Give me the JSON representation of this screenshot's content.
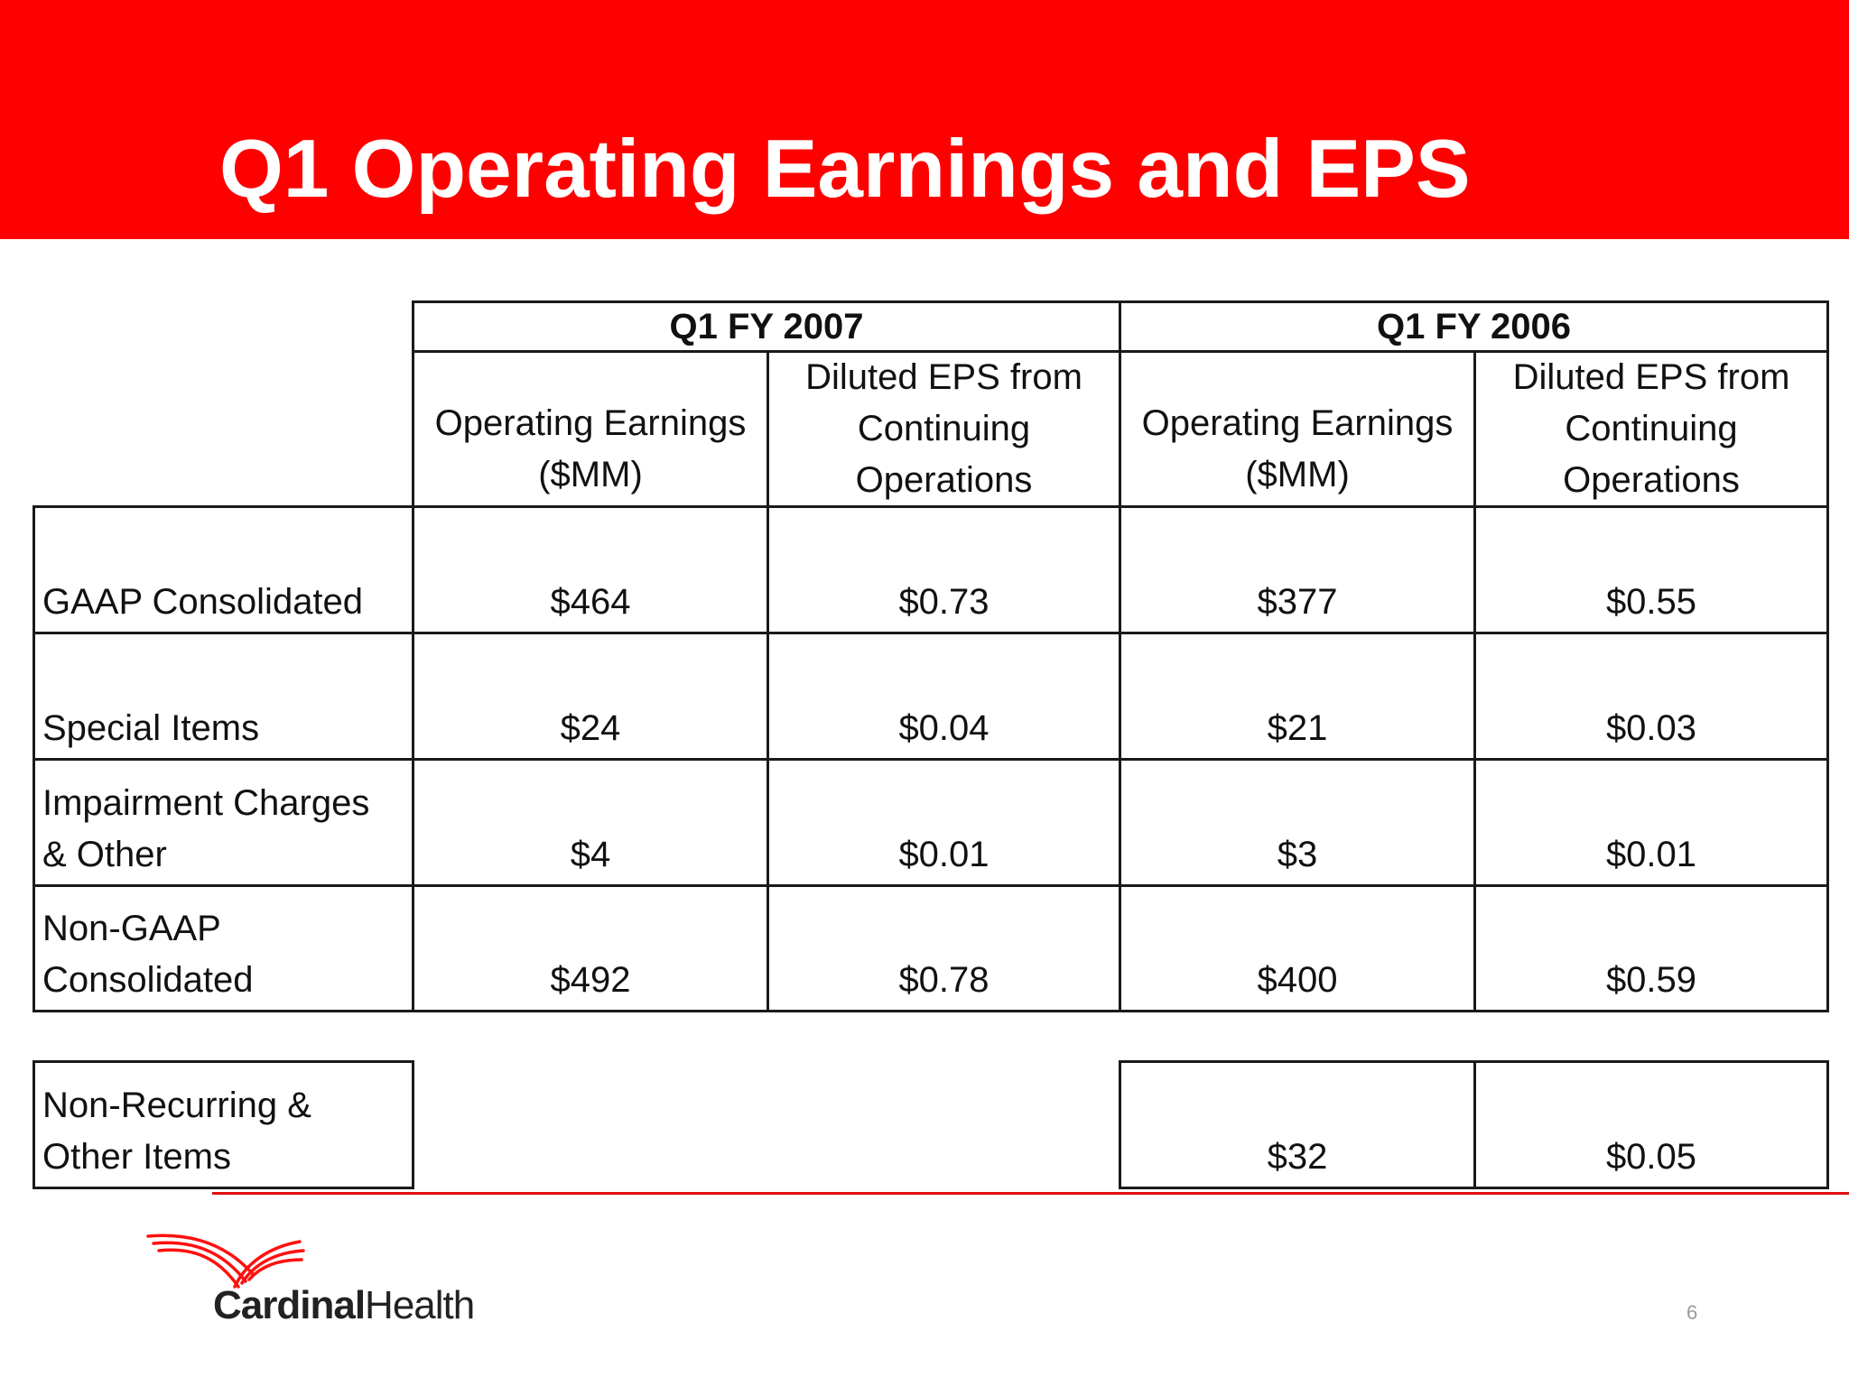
{
  "title": "Q1 Operating Earnings and EPS",
  "table": {
    "groups": [
      "Q1 FY 2007",
      "Q1 FY 2006"
    ],
    "col_op_earnings": [
      "Operating Earnings",
      "($MM)"
    ],
    "col_eps": [
      "Diluted EPS from",
      "Continuing",
      "Operations"
    ],
    "rows": [
      {
        "label": [
          "GAAP Consolidated"
        ],
        "values": [
          "$464",
          "$0.73",
          "$377",
          "$0.55"
        ]
      },
      {
        "label": [
          "Special Items"
        ],
        "values": [
          "$24",
          "$0.04",
          "$21",
          "$0.03"
        ]
      },
      {
        "label": [
          "Impairment Charges",
          "& Other"
        ],
        "values": [
          "$4",
          "$0.01",
          "$3",
          "$0.01"
        ]
      },
      {
        "label": [
          "Non-GAAP",
          "Consolidated"
        ],
        "values": [
          "$492",
          "$0.78",
          "$400",
          "$0.59"
        ]
      }
    ],
    "extra_row": {
      "label": [
        "Non-Recurring &",
        "Other Items"
      ],
      "values": [
        "$32",
        "$0.05"
      ]
    }
  },
  "logo": {
    "brand_bold": "Cardinal",
    "brand_light": "Health"
  },
  "page_number": "6",
  "colors": {
    "banner": "#ff0000",
    "rule": "#e01010"
  }
}
